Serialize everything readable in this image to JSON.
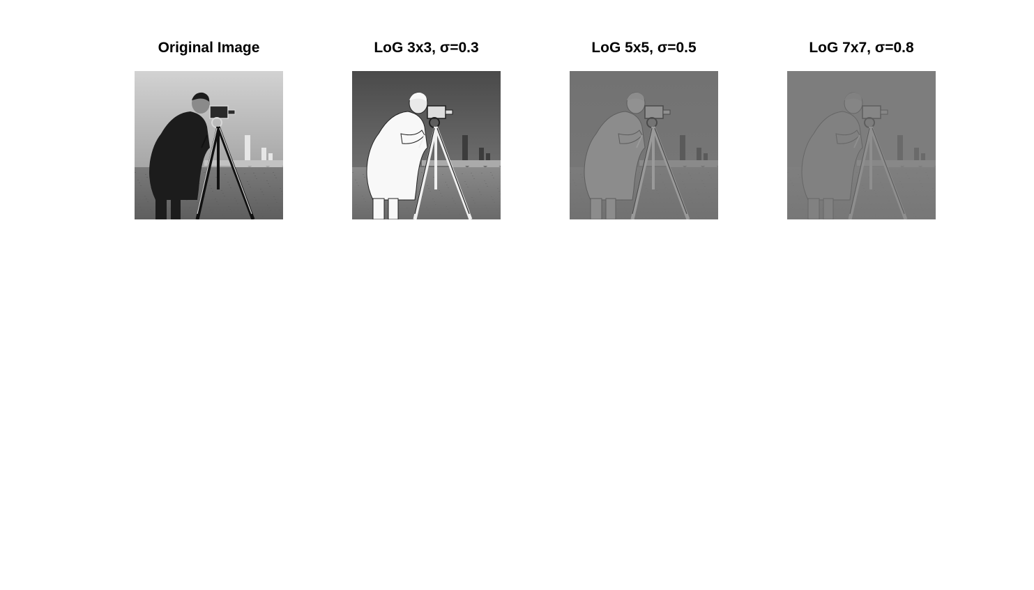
{
  "figure": {
    "panels": [
      {
        "title": "Original Image",
        "variant": "original"
      },
      {
        "title": "LoG 3x3, σ=0.3",
        "variant": "log3"
      },
      {
        "title": "LoG 5x5, σ=0.5",
        "variant": "log5"
      },
      {
        "title": "LoG 7x7, σ=0.8",
        "variant": "log7"
      }
    ]
  }
}
